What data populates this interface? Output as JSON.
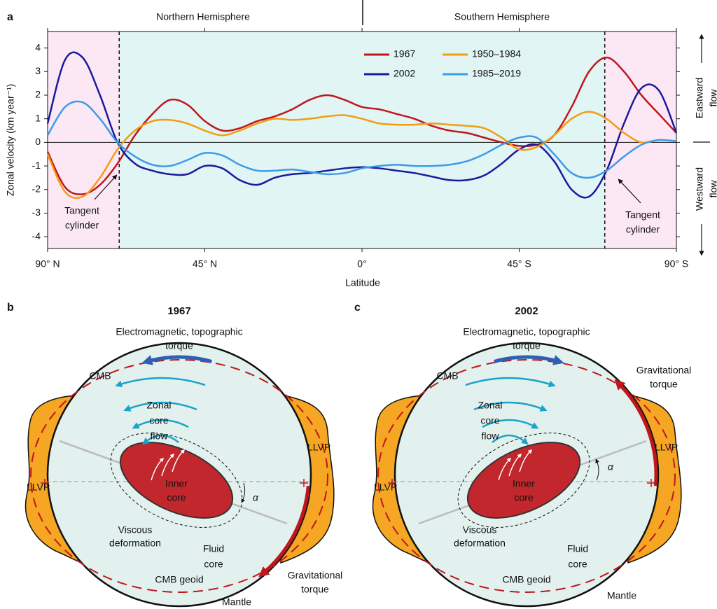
{
  "chart_data": {
    "type": "line",
    "panel_label": "a",
    "hemispheres": [
      "Northern Hemisphere",
      "Southern Hemisphere"
    ],
    "ylabel": "Zonal velocity (km year⁻¹)",
    "xlabel": "Latitude",
    "x": [
      90,
      85,
      80,
      75,
      70,
      65,
      60,
      55,
      50,
      45,
      40,
      35,
      30,
      25,
      20,
      15,
      10,
      5,
      0,
      -5,
      -10,
      -15,
      -20,
      -25,
      -30,
      -35,
      -40,
      -45,
      -50,
      -55,
      -60,
      -65,
      -70,
      -75,
      -80,
      -85,
      -90
    ],
    "xlim": [
      90,
      -90
    ],
    "xticks": [
      {
        "value": 90,
        "label": "90° N"
      },
      {
        "value": 45,
        "label": "45° N"
      },
      {
        "value": 0,
        "label": "0°"
      },
      {
        "value": -45,
        "label": "45° S"
      },
      {
        "value": -90,
        "label": "90° S"
      }
    ],
    "ylim": [
      -4.5,
      4.7
    ],
    "yticks": [
      -4,
      -3,
      -2,
      -1,
      0,
      1,
      2,
      3,
      4
    ],
    "legend": "upper center",
    "series": [
      {
        "name": "1967",
        "color": "#c0161d",
        "values": [
          -0.4,
          -1.9,
          -2.2,
          -1.8,
          -0.9,
          0.3,
          1.2,
          1.8,
          1.6,
          0.9,
          0.5,
          0.6,
          0.9,
          1.1,
          1.4,
          1.8,
          2.0,
          1.8,
          1.5,
          1.4,
          1.2,
          1.0,
          0.7,
          0.5,
          0.4,
          0.2,
          0.0,
          -0.15,
          -0.1,
          0.3,
          1.5,
          3.0,
          3.6,
          3.0,
          2.0,
          1.2,
          0.4
        ]
      },
      {
        "name": "2002",
        "color": "#1a1a9c",
        "values": [
          0.8,
          3.5,
          3.6,
          2.0,
          0.0,
          -0.9,
          -1.2,
          -1.35,
          -1.35,
          -1.0,
          -1.1,
          -1.6,
          -1.8,
          -1.5,
          -1.35,
          -1.3,
          -1.2,
          -1.1,
          -1.05,
          -1.1,
          -1.2,
          -1.3,
          -1.45,
          -1.6,
          -1.6,
          -1.4,
          -0.9,
          -0.3,
          -0.1,
          -0.8,
          -2.0,
          -2.3,
          -1.2,
          0.8,
          2.3,
          2.2,
          0.4
        ]
      },
      {
        "name": "1950–1984",
        "color": "#f39c12",
        "values": [
          -0.5,
          -2.1,
          -2.3,
          -1.5,
          -0.3,
          0.5,
          0.9,
          0.95,
          0.8,
          0.5,
          0.3,
          0.5,
          0.8,
          1.0,
          0.95,
          1.0,
          1.1,
          1.15,
          1.0,
          0.8,
          0.75,
          0.75,
          0.8,
          0.75,
          0.7,
          0.6,
          0.2,
          -0.3,
          -0.2,
          0.3,
          1.0,
          1.3,
          1.0,
          0.4,
          0.0,
          0.1,
          0.05
        ]
      },
      {
        "name": "1985–2019",
        "color": "#3d9be8",
        "values": [
          0.3,
          1.5,
          1.7,
          1.0,
          0.0,
          -0.6,
          -0.95,
          -1.0,
          -0.75,
          -0.45,
          -0.55,
          -0.95,
          -1.2,
          -1.2,
          -1.15,
          -1.25,
          -1.35,
          -1.3,
          -1.1,
          -1.0,
          -0.95,
          -1.0,
          -1.0,
          -0.95,
          -0.8,
          -0.5,
          -0.1,
          0.2,
          0.2,
          -0.5,
          -1.3,
          -1.5,
          -1.2,
          -0.6,
          -0.1,
          0.1,
          0.05
        ]
      }
    ],
    "tangent_cylinder": [
      69.5,
      -69.5
    ],
    "region_colors": [
      "#fce8f5",
      "#e0f5f4"
    ],
    "annotations": [
      [
        "Tangent",
        "cylinder"
      ],
      [
        "Tangent",
        "cylinder"
      ]
    ],
    "flow_labels": [
      [
        "Eastward",
        "flow"
      ],
      [
        "Westward",
        "flow"
      ]
    ]
  },
  "panels": [
    {
      "label": "b",
      "title": "1967",
      "torque": [
        "Electromagnetic, topographic",
        "torque"
      ],
      "cmb": "CMB",
      "flow": [
        "Zonal",
        "core",
        "flow"
      ],
      "llvp": [
        "LLVP",
        "LLVP"
      ],
      "inner_core": [
        "Inner",
        "core"
      ],
      "viscous": [
        "Viscous",
        "deformation"
      ],
      "fluid": [
        "Fluid",
        "core"
      ],
      "geoid": "CMB geoid",
      "gravity": [
        "Gravitational",
        "torque"
      ],
      "mantle": "Mantle",
      "alpha": "α"
    },
    {
      "label": "c",
      "title": "2002",
      "torque": [
        "Electromagnetic, topographic",
        "torque"
      ],
      "cmb": "CMB",
      "flow": [
        "Zonal",
        "core",
        "flow"
      ],
      "llvp": [
        "LLVP",
        "LLVP"
      ],
      "inner_core": [
        "Inner",
        "core"
      ],
      "viscous": [
        "Viscous",
        "deformation"
      ],
      "fluid": [
        "Fluid",
        "core"
      ],
      "geoid": "CMB geoid",
      "gravity": [
        "Gravitational",
        "torque"
      ],
      "mantle": "Mantle",
      "alpha": "α"
    }
  ]
}
